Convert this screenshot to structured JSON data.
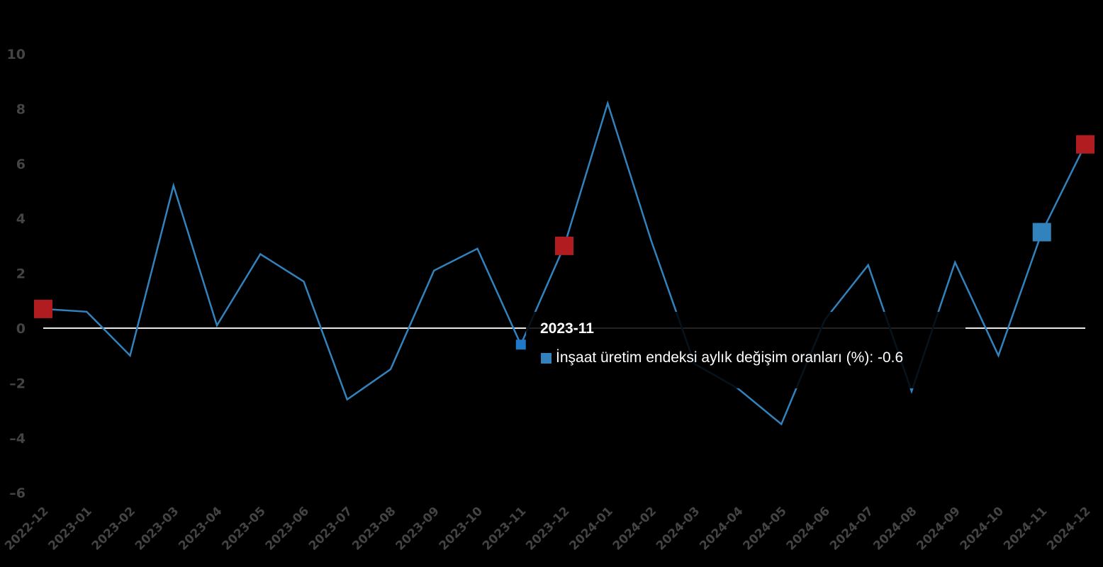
{
  "chart_data": {
    "type": "line",
    "title": "",
    "xlabel": "",
    "ylabel": "",
    "ylim": [
      -6,
      10
    ],
    "yticks": [
      10,
      8,
      6,
      4,
      2,
      0,
      -2,
      -4,
      -6
    ],
    "grid": false,
    "categories": [
      "2022-12",
      "2023-01",
      "2023-02",
      "2023-03",
      "2023-04",
      "2023-05",
      "2023-06",
      "2023-07",
      "2023-08",
      "2023-09",
      "2023-10",
      "2023-11",
      "2023-12",
      "2024-01",
      "2024-02",
      "2024-03",
      "2024-04",
      "2024-05",
      "2024-06",
      "2024-07",
      "2024-08",
      "2024-09",
      "2024-10",
      "2024-11",
      "2024-12"
    ],
    "series": [
      {
        "name": "İnşaat üretim endeksi aylık değişim oranları (%)",
        "color": "#3182bd",
        "values": [
          0.7,
          0.6,
          -1.0,
          5.2,
          0.1,
          2.7,
          1.7,
          -2.6,
          -1.5,
          2.1,
          2.9,
          -0.6,
          3.0,
          8.2,
          3.2,
          -1.3,
          -2.2,
          -3.5,
          0.3,
          2.3,
          -2.3,
          2.4,
          -1.0,
          3.5,
          6.7
        ]
      }
    ],
    "highlighted_points": [
      {
        "category": "2022-12",
        "value": 0.7,
        "color": "#b01c20"
      },
      {
        "category": "2023-12",
        "value": 3.0,
        "color": "#b01c20"
      },
      {
        "category": "2024-11",
        "value": 3.5,
        "color": "#3182bd"
      },
      {
        "category": "2024-12",
        "value": 6.7,
        "color": "#b01c20"
      }
    ],
    "zero_line_color": "#e8e8e8",
    "background": "#000000"
  },
  "tooltip": {
    "title": "2023-11",
    "series_label": "İnşaat üretim endeksi aylık değişim oranları (%)",
    "value": "-0.6",
    "row_text": "İnşaat üretim endeksi aylık değişim oranları (%): -0.6",
    "swatch_color": "#3182bd"
  }
}
